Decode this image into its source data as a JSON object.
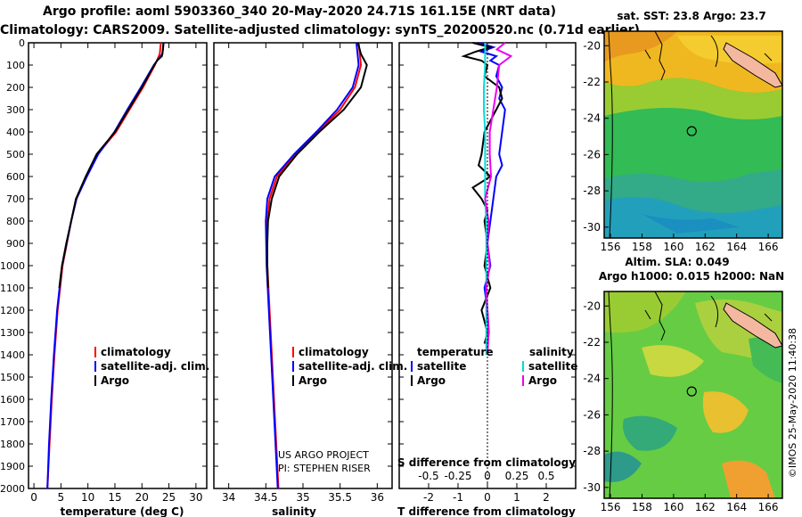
{
  "header": {
    "line1": "Argo profile: aoml 5903360_340 20-May-2020 24.71S 161.15E (NRT data)",
    "line2": "Climatology: CARS2009. Satellite-adjusted climatology: synTS_20200520.nc (0.71d earlier)"
  },
  "side_label": "©IMOS 25-May-2020 11:40:38",
  "credit": {
    "line1": "US ARGO PROJECT",
    "line2": "PI: STEPHEN RISER"
  },
  "colors": {
    "climatology": "#ff0000",
    "satellite_adj": "#0000ff",
    "argo": "#000000",
    "sal_satellite": "#00dddd",
    "sal_argo": "#ee00ee"
  },
  "chart_data": [
    {
      "type": "line",
      "name": "temperature-profile",
      "xlabel": "temperature (deg C)",
      "ylabel": "",
      "xlim": [
        -1,
        32
      ],
      "ylim": [
        2000,
        0
      ],
      "xticks": [
        0,
        5,
        10,
        15,
        20,
        25,
        30
      ],
      "yticks": [
        0,
        100,
        200,
        300,
        400,
        500,
        600,
        700,
        800,
        900,
        1000,
        1100,
        1200,
        1300,
        1400,
        1500,
        1600,
        1700,
        1800,
        1900,
        2000
      ],
      "legend": [
        "climatology",
        "satellite-adj. clim.",
        "Argo"
      ],
      "series": [
        {
          "name": "climatology",
          "depth": [
            0,
            50,
            100,
            200,
            300,
            400,
            500,
            600,
            700,
            800,
            1000,
            1200,
            1400,
            1600,
            1800,
            2000
          ],
          "values": [
            23.5,
            23.3,
            22.4,
            20.2,
            17.7,
            15.2,
            11.8,
            9.7,
            7.8,
            6.9,
            5.3,
            4.4,
            3.8,
            3.3,
            2.9,
            2.5
          ]
        },
        {
          "name": "satellite-adj. clim.",
          "depth": [
            0,
            50,
            100,
            200,
            300,
            400,
            500,
            600,
            700,
            800,
            1000,
            1200,
            1400,
            1600,
            1800,
            2000
          ],
          "values": [
            24.0,
            23.8,
            22.2,
            19.8,
            17.3,
            14.9,
            11.9,
            9.8,
            7.9,
            6.9,
            5.2,
            4.3,
            3.7,
            3.2,
            2.8,
            2.5
          ]
        },
        {
          "name": "Argo",
          "depth": [
            0,
            30,
            60,
            80,
            100,
            200,
            300,
            400,
            500,
            600,
            700,
            800,
            900,
            1000,
            1100
          ],
          "values": [
            24.0,
            23.9,
            23.7,
            22.8,
            22.3,
            20.0,
            17.5,
            15.0,
            11.6,
            9.6,
            7.8,
            6.9,
            6.0,
            5.2,
            4.7
          ]
        }
      ]
    },
    {
      "type": "line",
      "name": "salinity-profile",
      "xlabel": "salinity",
      "ylabel": "",
      "xlim": [
        33.8,
        36.2
      ],
      "ylim": [
        2000,
        0
      ],
      "xticks": [
        34,
        34.5,
        35,
        35.5,
        36
      ],
      "xtick_labels": [
        "34",
        "34.5",
        "35",
        "35.5",
        "36"
      ],
      "legend": [
        "climatology",
        "satellite-adj. clim.",
        "Argo"
      ],
      "series": [
        {
          "name": "climatology",
          "depth": [
            0,
            100,
            200,
            300,
            400,
            500,
            600,
            700,
            800,
            1000,
            1200,
            1400,
            1600,
            1800,
            2000
          ],
          "values": [
            35.75,
            35.78,
            35.7,
            35.5,
            35.2,
            34.9,
            34.65,
            34.55,
            34.52,
            34.52,
            34.55,
            34.58,
            34.61,
            34.64,
            34.67
          ]
        },
        {
          "name": "satellite-adj. clim.",
          "depth": [
            0,
            100,
            200,
            300,
            400,
            500,
            600,
            700,
            800,
            1000,
            1200,
            1400,
            1600,
            1800,
            2000
          ],
          "values": [
            35.72,
            35.75,
            35.67,
            35.46,
            35.18,
            34.88,
            34.62,
            34.52,
            34.5,
            34.51,
            34.54,
            34.57,
            34.6,
            34.63,
            34.66
          ]
        },
        {
          "name": "Argo",
          "depth": [
            0,
            50,
            100,
            200,
            300,
            400,
            500,
            600,
            700,
            800,
            900,
            1000,
            1100
          ],
          "values": [
            35.74,
            35.78,
            35.86,
            35.78,
            35.55,
            35.22,
            34.92,
            34.68,
            34.58,
            34.53,
            34.52,
            34.52,
            34.53
          ]
        }
      ]
    },
    {
      "type": "line",
      "name": "difference-profile",
      "xlabel": "T difference from climatology",
      "top_xlabel": "S difference from climatology",
      "ylabel": "",
      "xlim": [
        -3,
        3
      ],
      "ylim": [
        2000,
        0
      ],
      "xticks": [
        -2,
        -1,
        0,
        1,
        2
      ],
      "top_xticks": [
        -0.5,
        -0.25,
        0,
        0.25,
        0.5
      ],
      "top_xtick_labels": [
        "-0.5",
        "-0.25",
        "0",
        "0.25",
        "0.5"
      ],
      "legend_headers": [
        "temperature",
        "salinity"
      ],
      "legend_left": [
        "satellite",
        "Argo"
      ],
      "legend_right": [
        "satellite",
        "Argo"
      ],
      "series": [
        {
          "name": "temperature satellite",
          "depth": [
            0,
            20,
            40,
            60,
            80,
            100,
            150,
            200,
            250,
            300,
            400,
            500,
            550,
            600,
            700,
            800,
            900,
            1000,
            1100,
            1200,
            1300,
            1350
          ],
          "values": [
            -0.3,
            0.2,
            -0.2,
            0.3,
            0.1,
            0.4,
            0.3,
            0.5,
            0.4,
            0.6,
            0.5,
            0.4,
            0.5,
            0.3,
            0.2,
            0.1,
            0.0,
            0.1,
            -0.1,
            0.0,
            0.05,
            0.0
          ]
        },
        {
          "name": "temperature Argo",
          "depth": [
            0,
            20,
            40,
            60,
            80,
            100,
            150,
            200,
            250,
            300,
            400,
            500,
            550,
            600,
            650,
            700,
            750,
            800,
            900,
            1000,
            1100,
            1200,
            1300,
            1350
          ],
          "values": [
            -0.5,
            0.1,
            -0.4,
            -0.8,
            -0.2,
            0.0,
            -0.1,
            0.4,
            0.5,
            0.3,
            -0.1,
            -0.2,
            -0.3,
            0.1,
            -0.5,
            -0.2,
            0.0,
            -0.1,
            0.0,
            -0.1,
            0.1,
            -0.2,
            0.0,
            -0.1
          ]
        },
        {
          "name": "salinity satellite",
          "depth": [
            0,
            100,
            200,
            300,
            400,
            500,
            600,
            700,
            800,
            1000,
            1200,
            1400
          ],
          "values": [
            -0.02,
            -0.02,
            -0.03,
            -0.03,
            -0.02,
            -0.02,
            -0.02,
            -0.02,
            -0.01,
            -0.01,
            -0.01,
            -0.01
          ]
        },
        {
          "name": "salinity Argo",
          "depth": [
            0,
            30,
            60,
            100,
            200,
            300,
            400,
            500,
            600,
            700,
            800,
            900,
            1000,
            1100,
            1200,
            1300,
            1400
          ],
          "values": [
            0.15,
            0.08,
            0.2,
            0.1,
            0.08,
            0.05,
            0.02,
            0.02,
            0.03,
            -0.02,
            0.01,
            0.0,
            0.02,
            -0.01,
            0.0,
            0.01,
            0.0
          ]
        }
      ]
    },
    {
      "type": "heatmap",
      "name": "sst-map",
      "title": "sat. SST: 23.8 Argo: 23.7",
      "xticks": [
        156,
        158,
        160,
        162,
        164,
        166
      ],
      "yticks": [
        -20,
        -22,
        -24,
        -26,
        -28,
        -30
      ],
      "xlim": [
        155.6,
        166.9
      ],
      "ylim": [
        -30.6,
        -19.2
      ],
      "argo_position": {
        "lon": 161.15,
        "lat": -24.71
      }
    },
    {
      "type": "heatmap",
      "name": "sla-map",
      "title": "Altim. SLA: 0.049",
      "subtitle": "Argo h1000: 0.015 h2000: NaN",
      "xticks": [
        156,
        158,
        160,
        162,
        164,
        166
      ],
      "yticks": [
        -20,
        -22,
        -24,
        -26,
        -28,
        -30
      ],
      "xlim": [
        155.6,
        166.9
      ],
      "ylim": [
        -30.6,
        -19.2
      ],
      "argo_position": {
        "lon": 161.15,
        "lat": -24.71
      }
    }
  ]
}
